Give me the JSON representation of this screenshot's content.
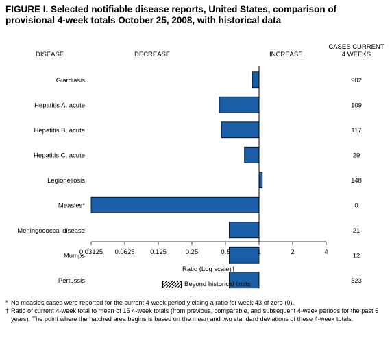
{
  "figure_title": "FIGURE I. Selected notifiable disease reports, United States, comparison of provisional 4-week totals October 25, 2008, with historical data",
  "headers": {
    "disease": "DISEASE",
    "decrease": "DECREASE",
    "increase": "INCREASE",
    "cases": "CASES CURRENT\n4 WEEKS"
  },
  "legend": {
    "label": "Beyond historical limits"
  },
  "footnotes": [
    {
      "marker": "*",
      "text": "No measles cases were reported for the current 4-week period yielding a ratio for week 43 of zero (0)."
    },
    {
      "marker": "†",
      "text": "Ratio of current 4-week total to mean of 15 4-week totals (from previous, comparable, and subsequent 4-week periods for the past 5 years). The point where the hatched area begins is based on the mean and two standard deviations of these 4-week totals."
    }
  ],
  "chart_data": {
    "type": "bar",
    "orientation": "horizontal",
    "scale": "log2",
    "xlabel": "Ratio (Log scale)†",
    "xlim": [
      0.03125,
      4
    ],
    "x_ticks": [
      "0.03125",
      "0.0625",
      "0.125",
      "0.25",
      "0.5",
      "1",
      "2",
      "4"
    ],
    "reference_line": 1,
    "bar_color": "#1a5ea8",
    "categories": [
      "Giardiasis",
      "Hepatitis A, acute",
      "Hepatitis B, acute",
      "Hepatitis C, acute",
      "Legionellosis",
      "Measles*",
      "Meningococcal disease",
      "Mumps",
      "Pertussis"
    ],
    "values": [
      0.87,
      0.44,
      0.46,
      0.74,
      1.07,
      0.03125,
      0.54,
      0.54,
      0.54
    ],
    "cases_current_4_weeks": [
      "902",
      "109",
      "117",
      "29",
      "148",
      "0",
      "21",
      "12",
      "323"
    ]
  }
}
